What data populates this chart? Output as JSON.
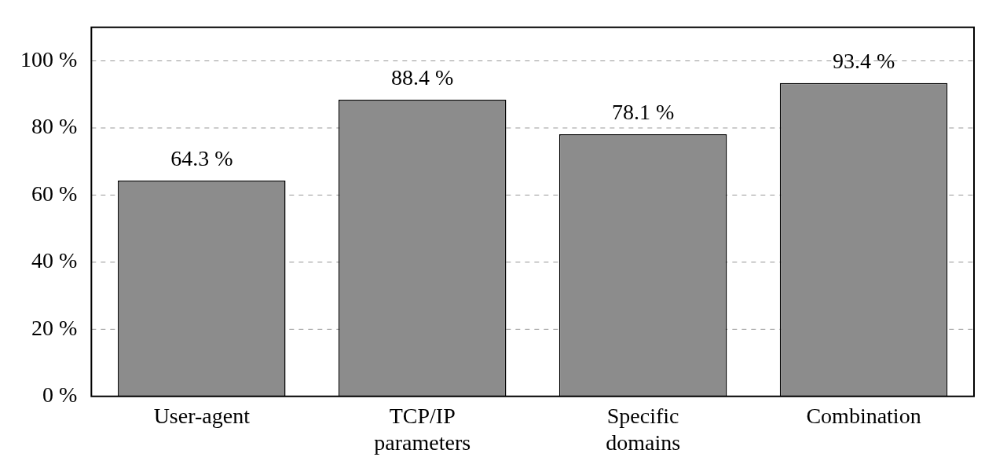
{
  "chart_data": {
    "type": "bar",
    "categories": [
      "User-agent",
      "TCP/IP parameters",
      "Specific domains",
      "Combination"
    ],
    "values": [
      64.3,
      88.4,
      78.1,
      93.4
    ],
    "value_labels": [
      "64.3 %",
      "88.4 %",
      "78.1 %",
      "93.4 %"
    ],
    "color": "#8c8c8c",
    "ylim": [
      0,
      110
    ],
    "yticks": [
      {
        "value": 0,
        "label": "0 %"
      },
      {
        "value": 20,
        "label": "20 %"
      },
      {
        "value": 40,
        "label": "40 %"
      },
      {
        "value": 60,
        "label": "60 %"
      },
      {
        "value": 80,
        "label": "80 %"
      },
      {
        "value": 100,
        "label": "100 %"
      }
    ],
    "grid": "y",
    "legend": false
  }
}
